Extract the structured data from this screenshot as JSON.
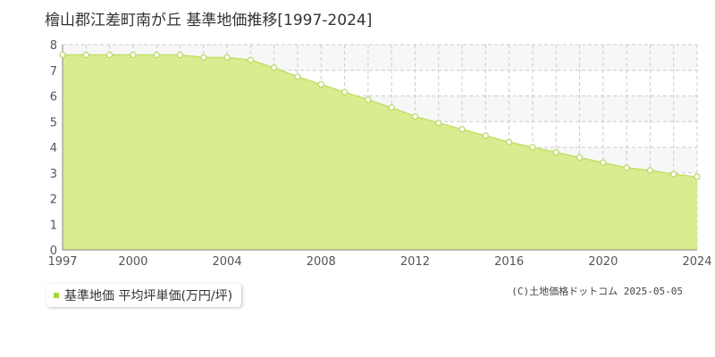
{
  "title": "檜山郡江差町南が丘 基準地価推移[1997-2024]",
  "legend": {
    "label": "基準地価 平均坪単価(万円/坪)"
  },
  "copyright": "(C)土地価格ドットコム 2025-05-05",
  "colors": {
    "fill": "#d9ec8f",
    "line": "#c2e06a",
    "marker": "#ffffff",
    "marker_stroke": "#b8d860",
    "grid": "#cccccc",
    "legend_swatch": "#a8d53a"
  },
  "chart_data": {
    "type": "area",
    "title": "檜山郡江差町南が丘 基準地価推移[1997-2024]",
    "xlabel": "",
    "ylabel": "",
    "xlim": [
      1997,
      2024
    ],
    "ylim": [
      0,
      8
    ],
    "x_ticks": [
      "1997",
      "2000",
      "2004",
      "2008",
      "2012",
      "2016",
      "2020",
      "2024"
    ],
    "y_ticks": [
      "0",
      "1",
      "2",
      "3",
      "4",
      "5",
      "6",
      "7",
      "8"
    ],
    "grid": true,
    "legend_position": "bottom-left",
    "series": [
      {
        "name": "基準地価 平均坪単価(万円/坪)",
        "x": [
          1997,
          1998,
          1999,
          2000,
          2001,
          2002,
          2003,
          2004,
          2005,
          2006,
          2007,
          2008,
          2009,
          2010,
          2011,
          2012,
          2013,
          2014,
          2015,
          2016,
          2017,
          2018,
          2019,
          2020,
          2021,
          2022,
          2023,
          2024
        ],
        "values": [
          7.6,
          7.6,
          7.6,
          7.6,
          7.6,
          7.6,
          7.5,
          7.5,
          7.4,
          7.1,
          6.75,
          6.45,
          6.15,
          5.85,
          5.55,
          5.2,
          4.95,
          4.7,
          4.45,
          4.2,
          4.0,
          3.8,
          3.6,
          3.4,
          3.2,
          3.1,
          2.95,
          2.85
        ]
      }
    ]
  }
}
